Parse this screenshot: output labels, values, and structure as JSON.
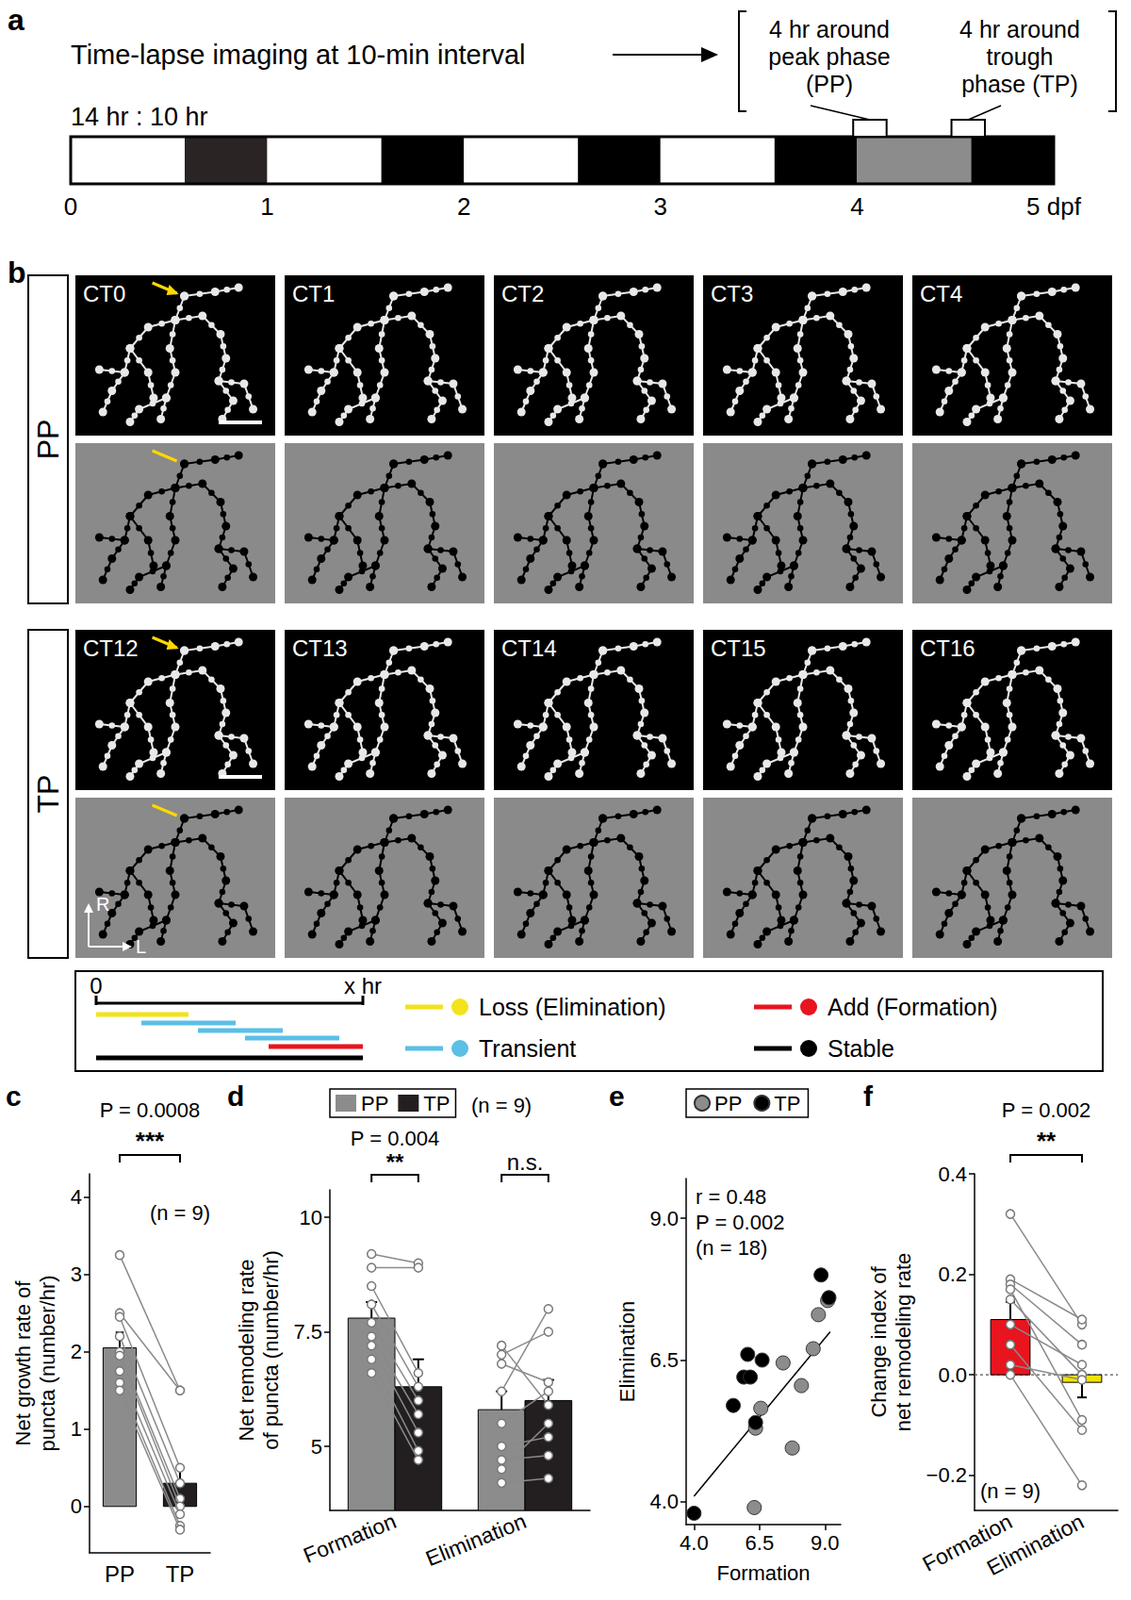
{
  "figure": {
    "panel_a": {
      "panel_label": "a",
      "title": "Time-lapse imaging at 10-min interval",
      "cycle_label": "14 hr : 10 hr",
      "xlim": [
        0,
        5
      ],
      "xticks": [
        0,
        1,
        2,
        3,
        4,
        {
          "value": 5,
          "label": "5 dpf"
        }
      ],
      "segments": [
        {
          "start": 0,
          "end": 0.58,
          "color": "#ffffff"
        },
        {
          "start": 0.58,
          "end": 1.0,
          "color": "#2b2424"
        },
        {
          "start": 1.0,
          "end": 1.58,
          "color": "#ffffff"
        },
        {
          "start": 1.58,
          "end": 2.0,
          "color": "#000000"
        },
        {
          "start": 2.0,
          "end": 2.58,
          "color": "#ffffff"
        },
        {
          "start": 2.58,
          "end": 3.0,
          "color": "#000000"
        },
        {
          "start": 3.0,
          "end": 3.58,
          "color": "#ffffff"
        },
        {
          "start": 3.58,
          "end": 4.0,
          "color": "#000000"
        },
        {
          "start": 4.0,
          "end": 4.58,
          "color": "#8c8c8c"
        },
        {
          "start": 4.58,
          "end": 5.0,
          "color": "#000000"
        }
      ],
      "windows": [
        {
          "label": "4 hr around peak phase (PP)",
          "start": 3.98,
          "end": 4.15
        },
        {
          "label": "4 hr around trough phase (TP)",
          "start": 4.48,
          "end": 4.65
        }
      ]
    },
    "panel_b": {
      "panel_label": "b",
      "rows": [
        {
          "label": "PP",
          "times": [
            "CT0",
            "CT1",
            "CT2",
            "CT3",
            "CT4"
          ]
        },
        {
          "label": "TP",
          "times": [
            "CT12",
            "CT13",
            "CT14",
            "CT15",
            "CT16"
          ]
        }
      ],
      "orientation": [
        "R",
        "L"
      ],
      "key": {
        "timeline": {
          "start": "0",
          "end": "x hr"
        },
        "items": [
          {
            "label": "Loss (Elimination)",
            "color": "#f2e31b"
          },
          {
            "label": "Transient",
            "color": "#5bbfe6"
          },
          {
            "label": "Add (Formation)",
            "color": "#e8141e"
          },
          {
            "label": "Stable",
            "color": "#000000"
          }
        ]
      }
    }
  },
  "chart_data": [
    {
      "panel_label": "c",
      "type": "bar",
      "y_label": "Net growth rate of puncta (number/hr)",
      "categories": [
        "PP",
        "TP"
      ],
      "values": [
        2.05,
        0.3
      ],
      "errors": [
        0.2,
        0.2
      ],
      "colors": [
        "#8c8c8c",
        "#231f20"
      ],
      "individual": [
        [
          3.25,
          1.5
        ],
        [
          2.5,
          1.5
        ],
        [
          2.45,
          0.5
        ],
        [
          2.2,
          0.3
        ],
        [
          2.0,
          0.1
        ],
        [
          1.95,
          0.0
        ],
        [
          1.75,
          -0.1
        ],
        [
          1.6,
          -0.25
        ],
        [
          1.5,
          -0.3
        ]
      ],
      "ylim": [
        -0.6,
        4.3
      ],
      "yticks": [
        0,
        1,
        2,
        3,
        4
      ],
      "significance": "***",
      "p_text": "P = 0.0008",
      "n_text": "(n = 9)"
    },
    {
      "panel_label": "d",
      "type": "bar",
      "y_label": "Net remodeling rate of puncta (number/hr)",
      "categories": [
        "Formation",
        "Elimination"
      ],
      "series": [
        {
          "name": "PP",
          "color": "#8c8c8c",
          "values": [
            7.8,
            5.8
          ],
          "errors": [
            0.35,
            0.4
          ]
        },
        {
          "name": "TP",
          "color": "#231f20",
          "values": [
            6.3,
            6.0
          ],
          "errors": [
            0.6,
            0.45
          ]
        }
      ],
      "individual": [
        [
          [
            9.2,
            9.0
          ],
          [
            8.9,
            8.9
          ],
          [
            8.5,
            6.6
          ],
          [
            8.1,
            6.3
          ],
          [
            7.7,
            6.0
          ],
          [
            7.4,
            5.7
          ],
          [
            7.2,
            5.3
          ],
          [
            6.9,
            4.9
          ],
          [
            6.6,
            4.7
          ]
        ],
        [
          [
            7.2,
            5.9
          ],
          [
            7.0,
            7.5
          ],
          [
            6.8,
            6.4
          ],
          [
            6.2,
            8.0
          ],
          [
            5.5,
            6.2
          ],
          [
            5.0,
            5.2
          ],
          [
            4.7,
            4.8
          ],
          [
            4.5,
            5.5
          ],
          [
            4.2,
            4.3
          ]
        ]
      ],
      "ylim": [
        3.6,
        10.6
      ],
      "yticks": [
        5,
        7.5,
        10
      ],
      "legend": "top",
      "annotations": [
        {
          "category": "Formation",
          "significance": "**",
          "p_text": "P = 0.004"
        },
        {
          "category": "Elimination",
          "significance": "n.s."
        }
      ],
      "n_text": "(n = 9)"
    },
    {
      "panel_label": "e",
      "type": "scatter",
      "x_label": "Formation",
      "y_label": "Elimination",
      "series": [
        {
          "name": "PP",
          "color": "#8c8c8c",
          "x": [
            6.3,
            6.35,
            6.55,
            7.75,
            8.1,
            8.55,
            8.75,
            9.1,
            7.4
          ],
          "y": [
            3.9,
            5.3,
            5.65,
            4.95,
            6.05,
            6.7,
            7.3,
            7.55,
            6.45
          ]
        },
        {
          "name": "TP",
          "color": "#000000",
          "x": [
            4.0,
            5.5,
            5.9,
            6.05,
            6.15,
            6.35,
            6.6,
            8.85,
            9.15
          ],
          "y": [
            3.8,
            5.7,
            6.2,
            6.6,
            6.2,
            5.4,
            6.5,
            8.0,
            7.6
          ]
        }
      ],
      "fit_line": {
        "x": [
          4.0,
          9.2
        ],
        "y": [
          4.1,
          7.0
        ]
      },
      "xlim": [
        3.7,
        9.6
      ],
      "ylim": [
        3.6,
        9.7
      ],
      "xticks": [
        {
          "value": 4,
          "label": "4.0"
        },
        {
          "value": 6.5,
          "label": "6.5"
        },
        {
          "value": 9,
          "label": "9.0"
        }
      ],
      "yticks": [
        {
          "value": 4,
          "label": "4.0"
        },
        {
          "value": 6.5,
          "label": "6.5"
        },
        {
          "value": 9,
          "label": "9.0"
        }
      ],
      "stats": [
        "r = 0.48",
        "P = 0.002",
        "(n = 18)"
      ],
      "legend": "top"
    },
    {
      "panel_label": "f",
      "type": "bar",
      "y_label": "Change index of net remodeling rate",
      "categories": [
        "Formation",
        "Elimination"
      ],
      "values": [
        0.11,
        -0.015
      ],
      "errors": [
        0.035,
        0.03
      ],
      "colors": [
        "#e8141e",
        "#f2e300"
      ],
      "individual": [
        [
          0.32,
          0.1
        ],
        [
          0.19,
          0.11
        ],
        [
          0.18,
          0.06
        ],
        [
          0.17,
          -0.09
        ],
        [
          0.15,
          0.0
        ],
        [
          0.1,
          0.02
        ],
        [
          0.06,
          -0.11
        ],
        [
          0.02,
          -0.01
        ],
        [
          0.0,
          -0.22
        ]
      ],
      "ylim": [
        -0.27,
        0.4
      ],
      "yticks": [
        {
          "value": -0.2,
          "label": "−0.2"
        },
        {
          "value": 0,
          "label": "0.0"
        },
        {
          "value": 0.2,
          "label": "0.2"
        },
        {
          "value": 0.4,
          "label": "0.4"
        }
      ],
      "reference_line": 0,
      "significance": "**",
      "p_text": "P = 0.002",
      "n_text": "(n = 9)"
    }
  ]
}
